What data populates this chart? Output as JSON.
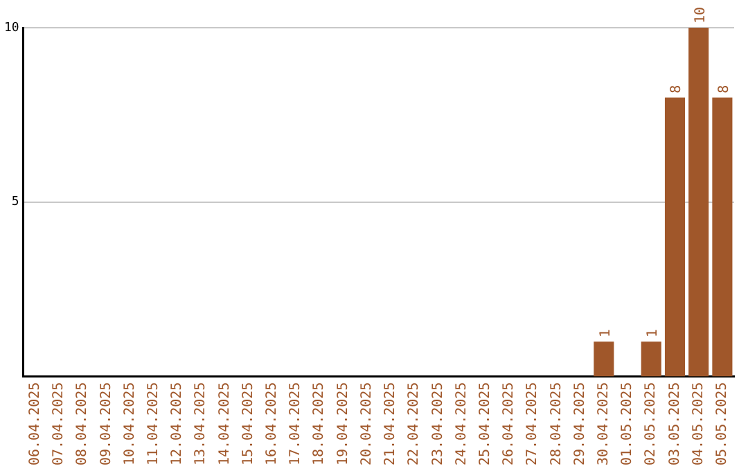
{
  "chart_data": {
    "type": "bar",
    "categories": [
      "06.04.2025",
      "07.04.2025",
      "08.04.2025",
      "09.04.2025",
      "10.04.2025",
      "11.04.2025",
      "12.04.2025",
      "13.04.2025",
      "14.04.2025",
      "15.04.2025",
      "16.04.2025",
      "17.04.2025",
      "18.04.2025",
      "19.04.2025",
      "20.04.2025",
      "21.04.2025",
      "22.04.2025",
      "23.04.2025",
      "24.04.2025",
      "25.04.2025",
      "26.04.2025",
      "27.04.2025",
      "28.04.2025",
      "29.04.2025",
      "30.04.2025",
      "01.05.2025",
      "02.05.2025",
      "03.05.2025",
      "04.05.2025",
      "05.05.2025"
    ],
    "values": [
      0,
      0,
      0,
      0,
      0,
      0,
      0,
      0,
      0,
      0,
      0,
      0,
      0,
      0,
      0,
      0,
      0,
      0,
      0,
      0,
      0,
      0,
      0,
      0,
      1,
      0,
      1,
      8,
      10,
      8
    ],
    "value_labels": [
      null,
      null,
      null,
      null,
      null,
      null,
      null,
      null,
      null,
      null,
      null,
      null,
      null,
      null,
      null,
      null,
      null,
      null,
      null,
      null,
      null,
      null,
      null,
      null,
      "1",
      null,
      "1",
      "8",
      "10",
      "8"
    ],
    "color": "#a0572a",
    "ylim": [
      0,
      10
    ],
    "yticks": [
      5,
      10
    ],
    "grid": "y",
    "legend": false
  }
}
